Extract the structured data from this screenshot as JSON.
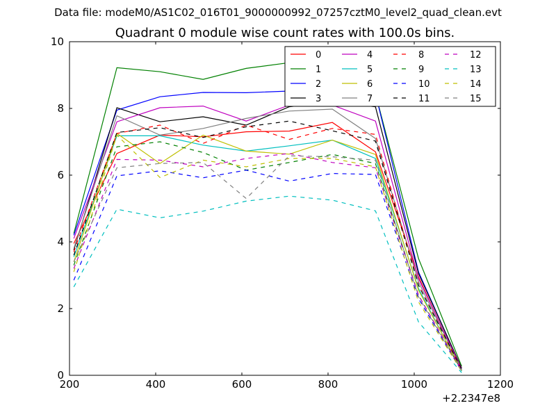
{
  "chart_data": {
    "type": "line",
    "supertitle": "Data file: modeM0/AS1C02_016T01_9000000992_07257cztM0_level2_quad_clean.evt",
    "title": "Quadrant 0 module wise count rates with 100.0s bins.",
    "xlabel": "",
    "ylabel": "",
    "x_offset_label": "+2.2347e8",
    "xlim": [
      200,
      1200
    ],
    "ylim": [
      0,
      10
    ],
    "xticks": [
      "200",
      "400",
      "600",
      "800",
      "1000",
      "1200"
    ],
    "yticks": [
      "0",
      "2",
      "4",
      "6",
      "8",
      "10"
    ],
    "grid": false,
    "legend_position": "top-right",
    "x": [
      210,
      310,
      410,
      510,
      610,
      710,
      810,
      910,
      1010,
      1110
    ],
    "series": [
      {
        "name": "0",
        "color": "#ff0000",
        "dash": "solid",
        "values": [
          3.95,
          6.65,
          7.2,
          7.15,
          7.3,
          7.32,
          7.58,
          6.7,
          2.95,
          0.15
        ]
      },
      {
        "name": "1",
        "color": "#008000",
        "dash": "solid",
        "values": [
          4.25,
          9.22,
          9.1,
          8.87,
          9.2,
          9.37,
          9.47,
          8.45,
          3.5,
          0.27
        ]
      },
      {
        "name": "2",
        "color": "#0000ff",
        "dash": "solid",
        "values": [
          4.2,
          7.95,
          8.35,
          8.48,
          8.47,
          8.52,
          8.1,
          8.45,
          3.1,
          0.2
        ]
      },
      {
        "name": "3",
        "color": "#000000",
        "dash": "solid",
        "values": [
          3.75,
          8.02,
          7.6,
          7.75,
          7.5,
          8.05,
          8.2,
          8.05,
          3.05,
          0.22
        ]
      },
      {
        "name": "4",
        "color": "#bf00bf",
        "dash": "solid",
        "values": [
          4.1,
          7.6,
          8.02,
          8.07,
          7.62,
          8.1,
          8.1,
          7.62,
          2.9,
          0.2
        ]
      },
      {
        "name": "5",
        "color": "#00bfbf",
        "dash": "solid",
        "values": [
          3.55,
          7.18,
          7.18,
          6.9,
          6.72,
          6.88,
          7.05,
          6.5,
          2.6,
          0.13
        ]
      },
      {
        "name": "6",
        "color": "#bfbf00",
        "dash": "solid",
        "values": [
          3.4,
          7.25,
          6.35,
          7.2,
          6.72,
          6.63,
          7.05,
          6.62,
          2.55,
          0.15
        ]
      },
      {
        "name": "7",
        "color": "#808080",
        "dash": "solid",
        "values": [
          3.8,
          7.78,
          7.2,
          7.4,
          7.7,
          7.92,
          7.98,
          7.1,
          2.8,
          0.17
        ]
      },
      {
        "name": "8",
        "color": "#ff0000",
        "dash": "dashed",
        "values": [
          3.7,
          7.25,
          7.5,
          6.95,
          7.5,
          7.07,
          7.4,
          7.22,
          2.7,
          0.18
        ]
      },
      {
        "name": "9",
        "color": "#008000",
        "dash": "dashed",
        "values": [
          3.3,
          6.85,
          7.0,
          6.68,
          6.15,
          6.38,
          6.62,
          6.35,
          2.4,
          0.14
        ]
      },
      {
        "name": "10",
        "color": "#0000ff",
        "dash": "dashed",
        "values": [
          2.85,
          5.98,
          6.13,
          5.92,
          6.15,
          5.82,
          6.05,
          6.02,
          2.3,
          0.12
        ]
      },
      {
        "name": "11",
        "color": "#000000",
        "dash": "dashed",
        "values": [
          3.6,
          7.28,
          7.42,
          7.13,
          7.45,
          7.62,
          7.33,
          7.02,
          2.7,
          0.18
        ]
      },
      {
        "name": "12",
        "color": "#bf00bf",
        "dash": "dashed",
        "values": [
          3.2,
          6.47,
          6.45,
          6.25,
          6.5,
          6.65,
          6.38,
          6.22,
          2.4,
          0.15
        ]
      },
      {
        "name": "13",
        "color": "#00bfbf",
        "dash": "dashed",
        "values": [
          2.65,
          4.98,
          4.72,
          4.92,
          5.22,
          5.37,
          5.25,
          4.93,
          1.6,
          0.08
        ]
      },
      {
        "name": "14",
        "color": "#bfbf00",
        "dash": "dashed",
        "values": [
          3.1,
          7.2,
          5.93,
          6.45,
          6.25,
          6.5,
          6.5,
          6.25,
          2.2,
          0.12
        ]
      },
      {
        "name": "15",
        "color": "#808080",
        "dash": "dashed",
        "values": [
          3.4,
          6.22,
          6.35,
          6.38,
          5.3,
          6.58,
          6.55,
          6.45,
          2.35,
          0.13
        ]
      }
    ]
  }
}
